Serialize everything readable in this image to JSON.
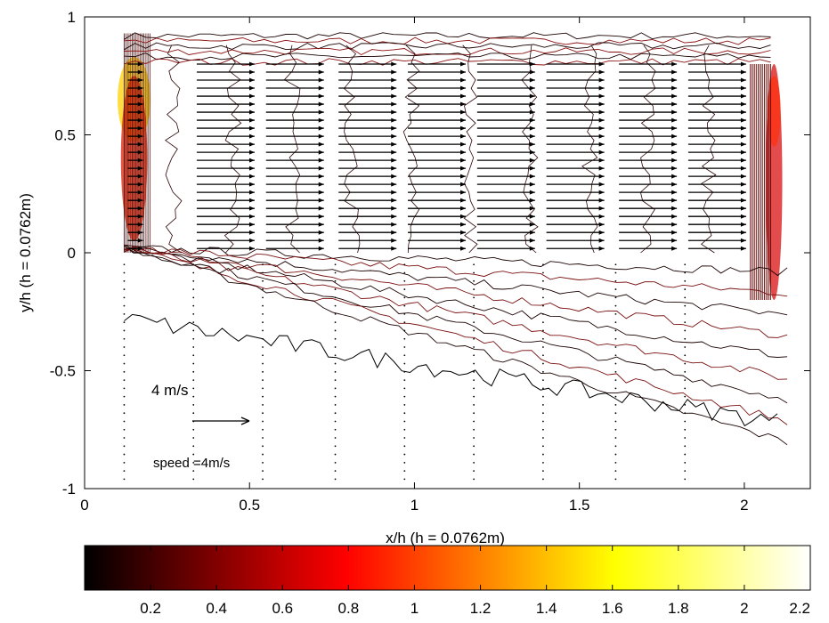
{
  "chart_data": {
    "type": "contour",
    "xlabel": "x/h (h = 0.0762m)",
    "ylabel": "y/h (h = 0.0762m)",
    "xlim": [
      0,
      2.2
    ],
    "ylim": [
      -1,
      1
    ],
    "x_ticks": [
      "0",
      "0.5",
      "1",
      "1.5",
      "2"
    ],
    "y_ticks": [
      "1",
      "0.5",
      "0",
      "-0.5",
      "-1"
    ],
    "x_tick_values": [
      0,
      0.5,
      1,
      1.5,
      2
    ],
    "y_tick_values": [
      1,
      0.5,
      0,
      -0.5,
      -1
    ],
    "colorbar": {
      "colormap": "hot",
      "range": [
        0,
        2.2
      ],
      "tick_values": [
        0.2,
        0.4,
        0.6,
        0.8,
        1,
        1.2,
        1.4,
        1.6,
        1.8,
        2,
        2.2
      ],
      "tick_labels": [
        "0.2",
        "0.4",
        "0.6",
        "0.8",
        "1",
        "1.2",
        "1.4",
        "1.6",
        "1.8",
        "2",
        "2.2"
      ]
    },
    "reference_vector": {
      "label": "4 m/s",
      "caption": "speed =4m/s",
      "magnitude": 4,
      "x": 0.33,
      "y": -0.72
    },
    "vector_station_x": [
      0.12,
      0.33,
      0.54,
      0.76,
      0.97,
      1.18,
      1.39,
      1.61,
      1.82
    ],
    "cavity": {
      "x": [
        0.12,
        2.08
      ],
      "y": [
        0,
        0.93
      ]
    },
    "shear_layer_y": 0.0
  }
}
